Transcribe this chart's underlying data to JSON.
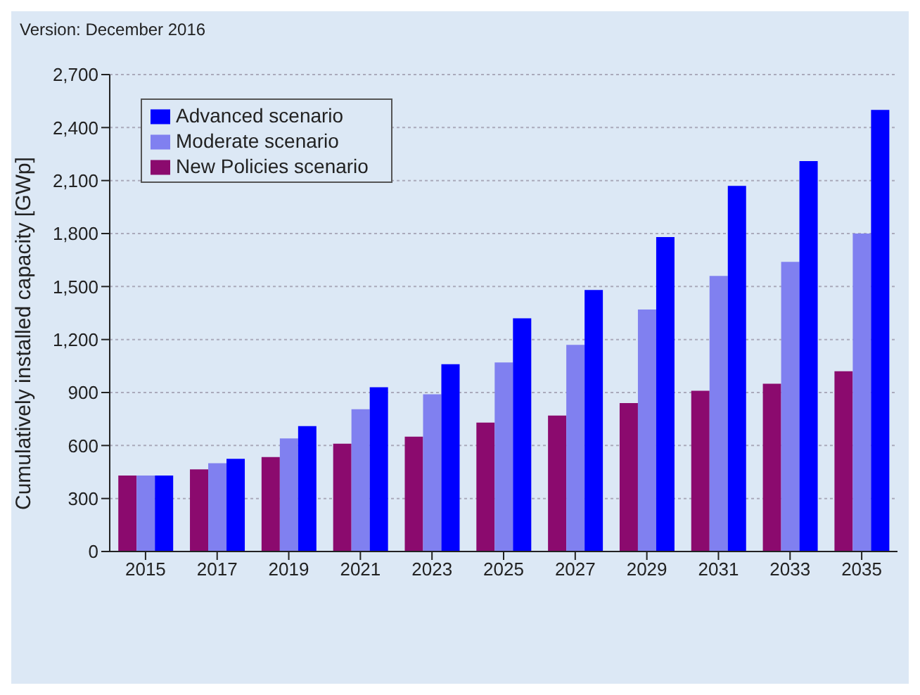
{
  "chart_data": {
    "type": "bar",
    "annotations": [
      "Version: December 2016"
    ],
    "ylabel": "Cumulatively installed capacity [GWp]",
    "categories": [
      "2015",
      "2017",
      "2019",
      "2021",
      "2023",
      "2025",
      "2027",
      "2029",
      "2031",
      "2033",
      "2035"
    ],
    "series": [
      {
        "name": "New Policies scenario",
        "color": "#8b0a6e",
        "values": [
          430,
          465,
          535,
          610,
          650,
          730,
          770,
          840,
          910,
          950,
          1020
        ]
      },
      {
        "name": "Moderate scenario",
        "color": "#8080f0",
        "values": [
          430,
          500,
          640,
          805,
          890,
          1070,
          1170,
          1370,
          1560,
          1640,
          1800
        ]
      },
      {
        "name": "Advanced scenario",
        "color": "#0000ff",
        "values": [
          430,
          525,
          710,
          930,
          1060,
          1320,
          1480,
          1780,
          2070,
          2210,
          2500
        ]
      }
    ],
    "ylim": [
      0,
      2700
    ],
    "yticks": [
      {
        "value": 0,
        "label": "0"
      },
      {
        "value": 300,
        "label": "300"
      },
      {
        "value": 600,
        "label": "600"
      },
      {
        "value": 900,
        "label": "900"
      },
      {
        "value": 1200,
        "label": "1,200"
      },
      {
        "value": 1500,
        "label": "1,500"
      },
      {
        "value": 1800,
        "label": "1,800"
      },
      {
        "value": 2100,
        "label": "2,100"
      },
      {
        "value": 2400,
        "label": "2,400"
      },
      {
        "value": 2700,
        "label": "2,700"
      }
    ],
    "grid": "y",
    "legend": "top left"
  }
}
